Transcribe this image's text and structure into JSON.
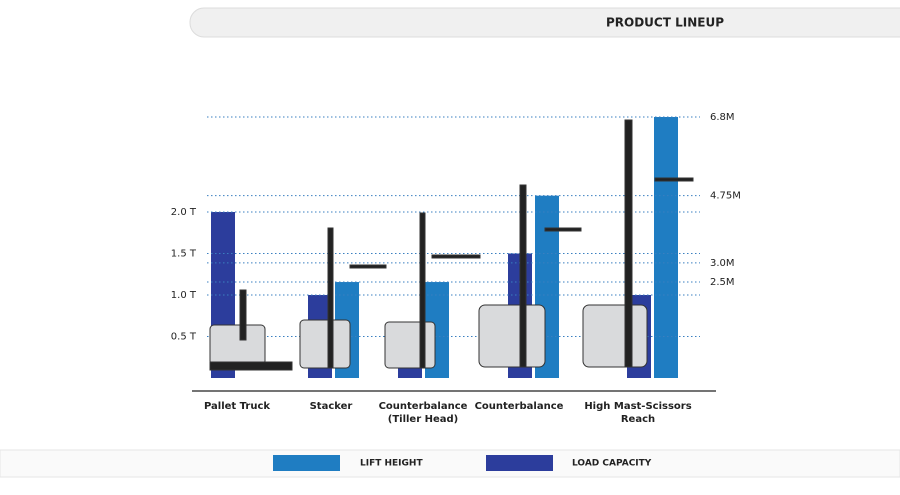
{
  "chart_data": {
    "type": "bar",
    "title": "PRODUCT LINEUP",
    "categories": [
      "Pallet Truck",
      "Stacker",
      "Counterbalance (Tiller Head)",
      "Counterbalance",
      "High Mast-Scissors Reach"
    ],
    "series": [
      {
        "name": "LIFT HEIGHT",
        "color": "#1f7dc2",
        "axis": "y2",
        "values": [
          null,
          2.5,
          2.5,
          4.75,
          6.8
        ]
      },
      {
        "name": "LOAD CAPACITY",
        "color": "#2c3d9c",
        "values": [
          2.0,
          1.0,
          0.5,
          1.5,
          1.0
        ]
      }
    ],
    "ylim": [
      0,
      2.0
    ],
    "yticks": [
      {
        "value": 0.5,
        "label": "0.5 T"
      },
      {
        "value": 1.0,
        "label": "1.0 T"
      },
      {
        "value": 1.5,
        "label": "1.5 T"
      },
      {
        "value": 2.0,
        "label": "2.0 T"
      }
    ],
    "y2lim": [
      0,
      6.8
    ],
    "y2ticks": [
      {
        "value": 2.5,
        "label": "2.5M"
      },
      {
        "value": 3.0,
        "label": "3.0M"
      },
      {
        "value": 4.75,
        "label": "4.75M"
      },
      {
        "value": 6.8,
        "label": "6.8M"
      }
    ],
    "grid": true,
    "legend": "bottom"
  }
}
